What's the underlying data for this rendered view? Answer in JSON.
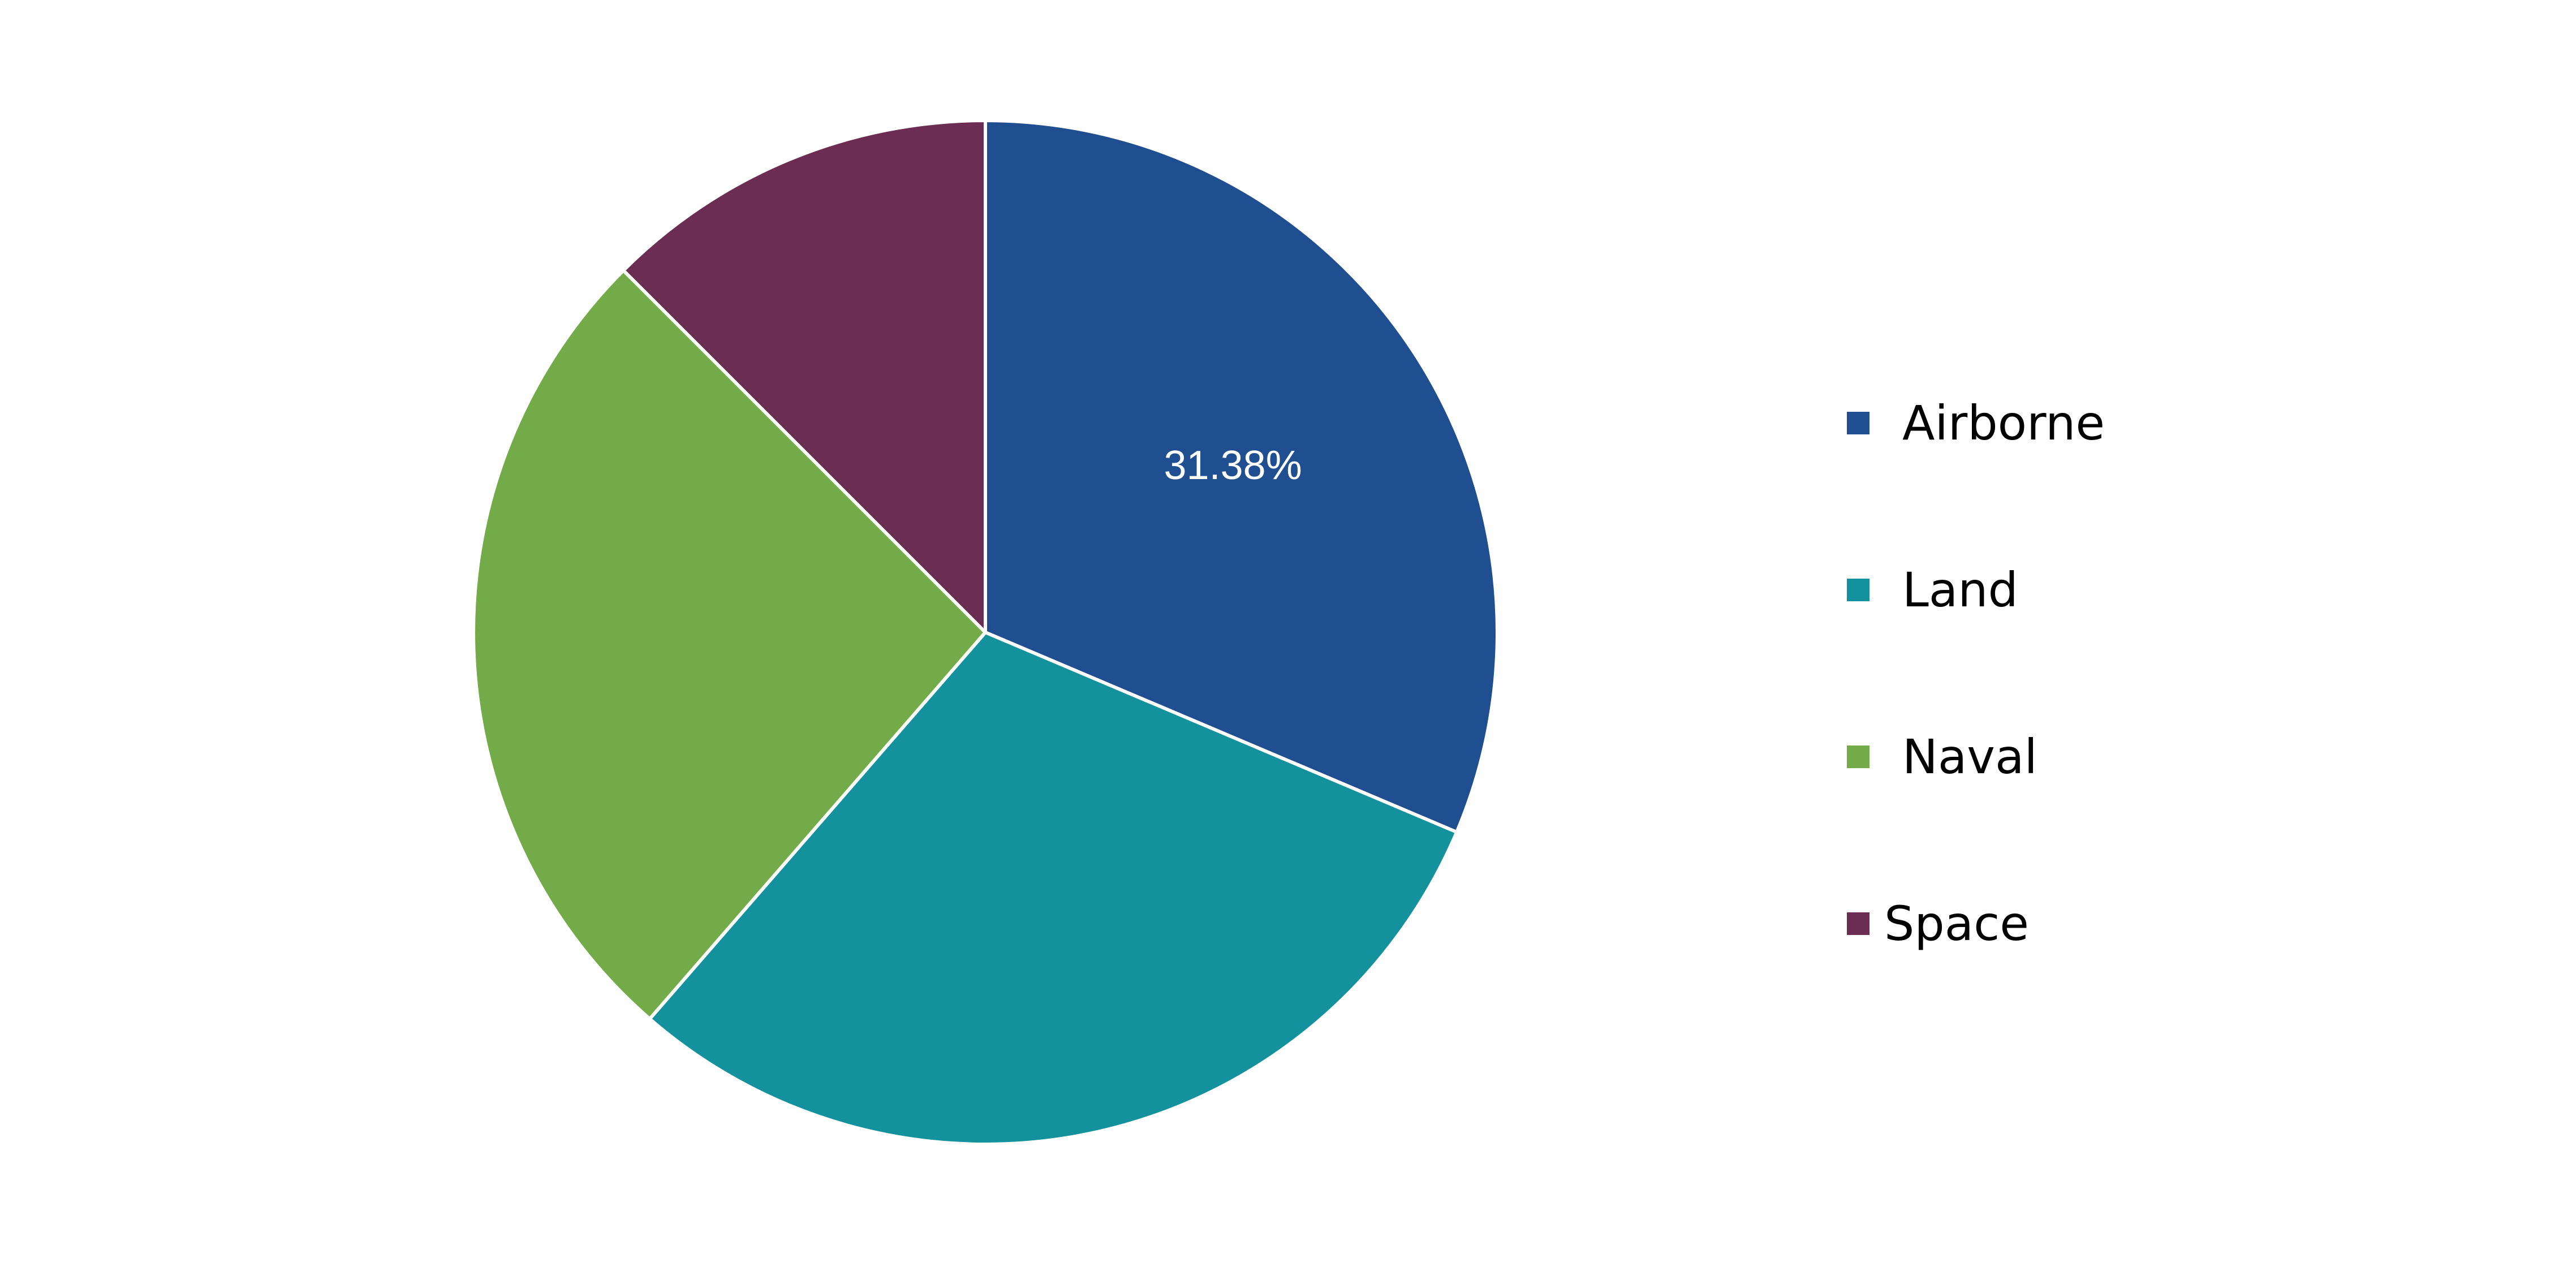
{
  "chart_data": {
    "type": "pie",
    "title": "",
    "categories": [
      "Airborne",
      "Land",
      "Naval",
      "Space"
    ],
    "values": [
      31.38,
      30.0,
      26.12,
      12.5
    ],
    "unit": "%",
    "start_angle_deg": 0,
    "direction": "clockwise",
    "data_labels": [
      "31.38%",
      "",
      "",
      ""
    ],
    "colors": [
      "#1f4e91",
      "#13929e",
      "#72ab48",
      "#6c2d52"
    ],
    "slice_border_color": "#ffffff",
    "legend": {
      "position": "right",
      "entries": [
        "Airborne",
        "Land",
        "Naval",
        "Space"
      ]
    }
  }
}
